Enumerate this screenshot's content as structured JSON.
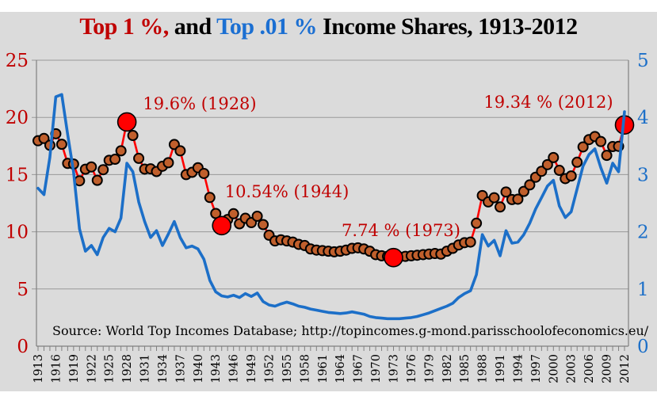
{
  "title": {
    "segments": [
      {
        "text": "Top 1 %,",
        "color": "#c00000"
      },
      {
        "text": " and ",
        "color": "#000000"
      },
      {
        "text": "Top .01 %",
        "color": "#1b6fd2"
      },
      {
        "text": " Income Shares, 1913-2012",
        "color": "#000000"
      }
    ]
  },
  "source_note": "Source: World Top Incomes Database; http://topincomes.g-mond.parisschoolofeconomics.eu/",
  "colors": {
    "background": "#dbdbdb",
    "gridline": "#999999",
    "axis_line": "#808080",
    "left_axis_text": "#c00000",
    "right_axis_text": "#1c6fc8",
    "annotation_text": "#c00000",
    "top1_line": "#ff0000",
    "top1_marker_fill": "#c05f2c",
    "top1_marker_stroke": "#000000",
    "callout_dot_fill": "#ff0000",
    "top001_line": "#1c6fc8"
  },
  "chart_data": {
    "type": "line",
    "x_start": 1913,
    "x_end": 2012,
    "x_tick_labels": [
      "1913",
      "1916",
      "1919",
      "1922",
      "1925",
      "1928",
      "1931",
      "1934",
      "1937",
      "1940",
      "1943",
      "1946",
      "1949",
      "1952",
      "1955",
      "1958",
      "1961",
      "1964",
      "1967",
      "1970",
      "1973",
      "1976",
      "1979",
      "1982",
      "1985",
      "1988",
      "1991",
      "1994",
      "1997",
      "2000",
      "2003",
      "2006",
      "2009",
      "2012"
    ],
    "left_axis": {
      "min": 0,
      "max": 25,
      "ticks": [
        0,
        5,
        10,
        15,
        20,
        25
      ]
    },
    "right_axis": {
      "min": 0,
      "max": 5,
      "ticks": [
        0,
        1,
        2,
        3,
        4,
        5
      ]
    },
    "grid": true,
    "legend_position": "none",
    "series": [
      {
        "name": "Top 1% income share (left axis, %)",
        "axis": "left",
        "marker": "circle",
        "values": [
          17.96,
          18.16,
          17.56,
          18.57,
          17.65,
          15.98,
          15.92,
          14.46,
          15.47,
          15.67,
          14.5,
          15.43,
          16.25,
          16.34,
          17.08,
          19.6,
          18.42,
          16.42,
          15.48,
          15.5,
          15.27,
          15.73,
          16.04,
          17.63,
          17.08,
          15.0,
          15.2,
          15.6,
          15.1,
          13.0,
          11.6,
          10.54,
          11.07,
          11.58,
          10.7,
          11.18,
          10.8,
          11.36,
          10.63,
          9.7,
          9.2,
          9.3,
          9.2,
          9.1,
          8.9,
          8.8,
          8.5,
          8.4,
          8.35,
          8.3,
          8.25,
          8.3,
          8.4,
          8.55,
          8.6,
          8.5,
          8.3,
          8.0,
          7.9,
          7.85,
          7.74,
          7.8,
          7.85,
          7.9,
          7.95,
          8.0,
          8.05,
          8.1,
          8.05,
          8.3,
          8.55,
          8.85,
          9.05,
          9.1,
          10.75,
          13.17,
          12.61,
          12.98,
          12.17,
          13.48,
          12.82,
          12.85,
          13.53,
          14.1,
          14.77,
          15.29,
          15.87,
          16.49,
          15.37,
          14.65,
          14.88,
          16.08,
          17.42,
          18.06,
          18.33,
          17.89,
          16.68,
          17.45,
          17.47,
          19.34
        ]
      },
      {
        "name": "Top .01% income share (right axis, %)",
        "axis": "right",
        "marker": "none",
        "values": [
          2.76,
          2.65,
          3.3,
          4.36,
          4.4,
          3.7,
          3.05,
          2.05,
          1.66,
          1.76,
          1.6,
          1.9,
          2.06,
          2.0,
          2.24,
          3.2,
          3.05,
          2.52,
          2.18,
          1.9,
          2.02,
          1.76,
          1.96,
          2.18,
          1.9,
          1.72,
          1.75,
          1.7,
          1.52,
          1.15,
          0.95,
          0.88,
          0.86,
          0.89,
          0.85,
          0.92,
          0.87,
          0.93,
          0.78,
          0.72,
          0.7,
          0.74,
          0.77,
          0.74,
          0.7,
          0.68,
          0.65,
          0.63,
          0.61,
          0.59,
          0.58,
          0.57,
          0.58,
          0.6,
          0.58,
          0.56,
          0.52,
          0.5,
          0.49,
          0.48,
          0.48,
          0.48,
          0.49,
          0.5,
          0.52,
          0.55,
          0.58,
          0.62,
          0.66,
          0.7,
          0.75,
          0.85,
          0.92,
          0.97,
          1.25,
          1.95,
          1.75,
          1.85,
          1.58,
          2.02,
          1.8,
          1.82,
          1.95,
          2.15,
          2.4,
          2.6,
          2.8,
          2.9,
          2.45,
          2.25,
          2.35,
          2.75,
          3.15,
          3.35,
          3.45,
          3.12,
          2.85,
          3.2,
          3.05,
          4.1
        ]
      }
    ],
    "annotations": [
      {
        "text": "19.6% (1928)",
        "year": 1928,
        "value": 19.6
      },
      {
        "text": "10.54% (1944)",
        "year": 1944,
        "value": 10.54
      },
      {
        "text": "7.74 % (1973)",
        "year": 1973,
        "value": 7.74
      },
      {
        "text": "19.34 % (2012)",
        "year": 2012,
        "value": 19.34
      }
    ]
  }
}
